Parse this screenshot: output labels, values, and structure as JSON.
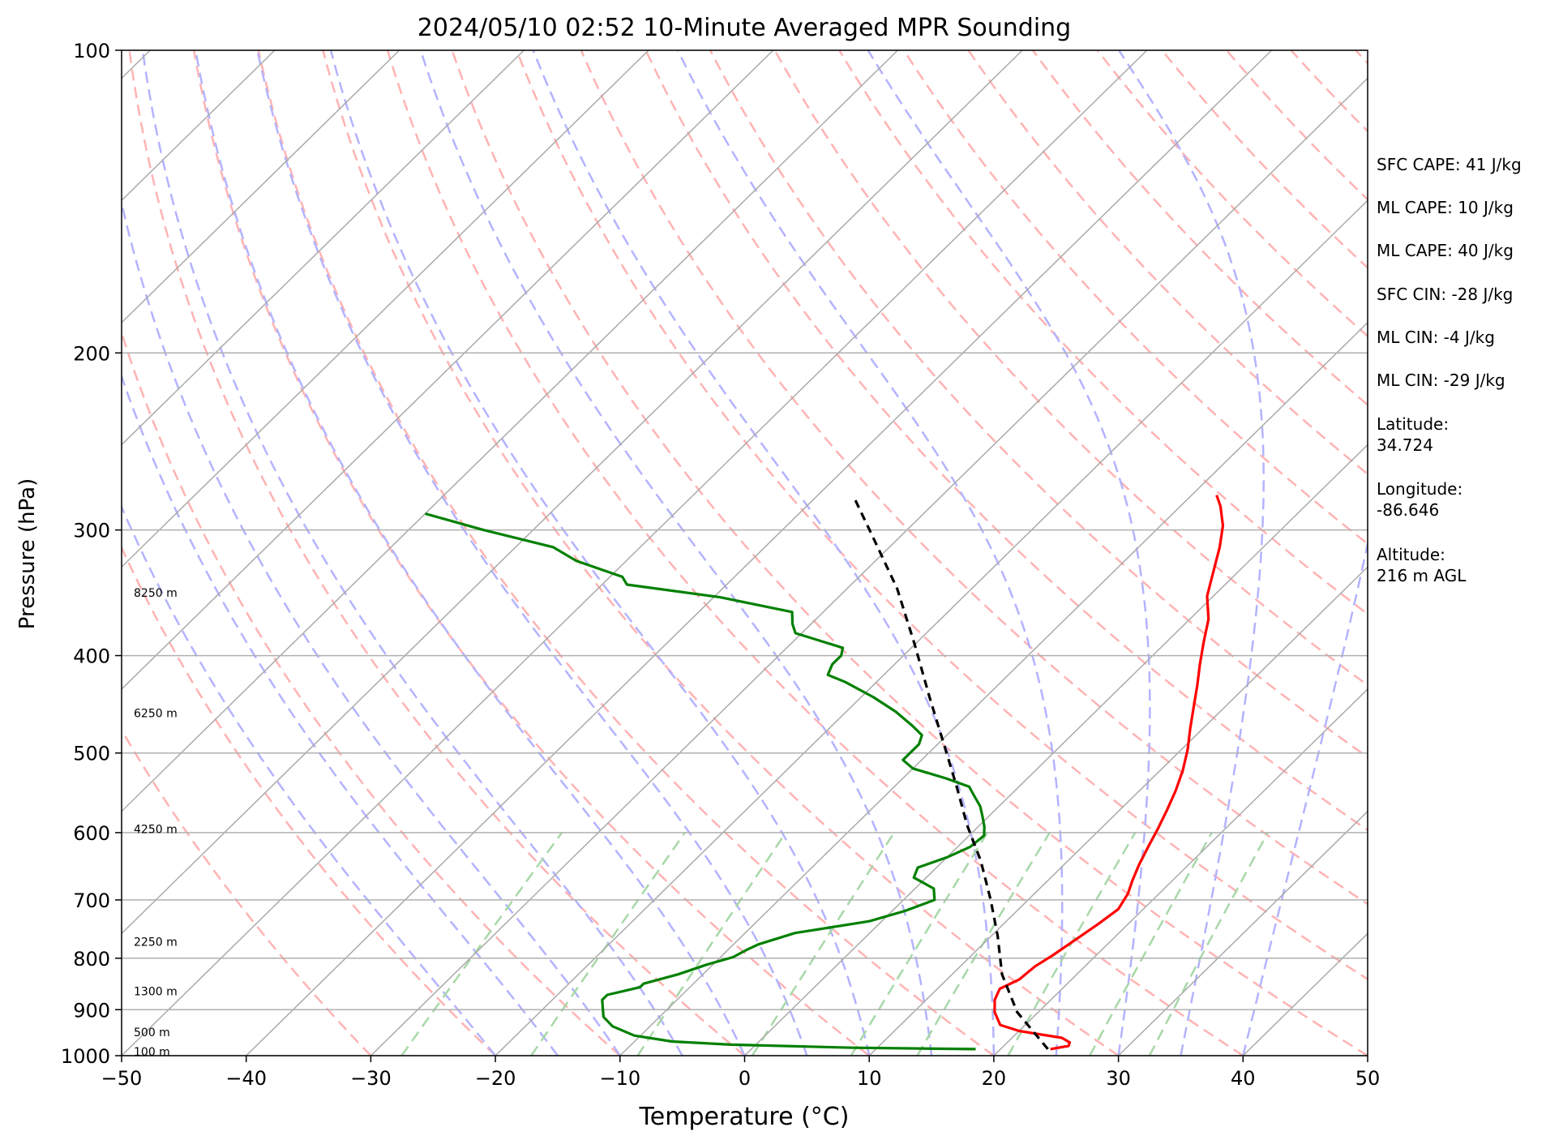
{
  "chart_data": {
    "type": "line",
    "subtype": "skew-T log-P sounding diagram",
    "title": "2024/05/10 02:52 10-Minute Averaged MPR Sounding",
    "xlabel": "Temperature (°C)",
    "ylabel": "Pressure (hPa)",
    "xlim": [
      -50,
      50
    ],
    "ylim_pressure_hPa": [
      1000,
      100
    ],
    "y_scale": "log (inverted)",
    "x_ticks": [
      -50,
      -40,
      -30,
      -20,
      -10,
      0,
      10,
      20,
      30,
      40,
      50
    ],
    "x_tick_labels": [
      "−50",
      "−40",
      "−30",
      "−20",
      "−10",
      "0",
      "10",
      "20",
      "30",
      "40",
      "50"
    ],
    "y_ticks": [
      100,
      200,
      300,
      400,
      500,
      600,
      700,
      800,
      900,
      1000
    ],
    "y_tick_labels": [
      "100",
      "200",
      "300",
      "400",
      "500",
      "600",
      "700",
      "800",
      "900",
      "1000"
    ],
    "grid": true,
    "height_labels": [
      {
        "text": "100 m",
        "p": 993
      },
      {
        "text": "500 m",
        "p": 949
      },
      {
        "text": "1300 m",
        "p": 864
      },
      {
        "text": "2250 m",
        "p": 772
      },
      {
        "text": "4250 m",
        "p": 596
      },
      {
        "text": "6250 m",
        "p": 457
      },
      {
        "text": "8250 m",
        "p": 347
      }
    ],
    "background_lines": {
      "isotherms_color": "#aaaaaa",
      "dry_adiabats_color": "#ffb3b3",
      "moist_adiabats_color": "#b3b3ff",
      "mixing_ratio_color": "#a8d8a8"
    },
    "series": [
      {
        "name": "temperature",
        "color": "#ff0000",
        "points": [
          [
            24.0,
            985
          ],
          [
            25.2,
            978
          ],
          [
            25.0,
            970
          ],
          [
            24.0,
            960
          ],
          [
            20.0,
            945
          ],
          [
            18.0,
            932
          ],
          [
            16.5,
            905
          ],
          [
            15.5,
            880
          ],
          [
            15.0,
            858
          ],
          [
            15.8,
            840
          ],
          [
            16.0,
            815
          ],
          [
            16.5,
            795
          ],
          [
            17.0,
            770
          ],
          [
            17.6,
            740
          ],
          [
            18.0,
            715
          ],
          [
            17.5,
            690
          ],
          [
            16.8,
            670
          ],
          [
            16.0,
            645
          ],
          [
            15.3,
            620
          ],
          [
            14.6,
            595
          ],
          [
            13.8,
            570
          ],
          [
            12.9,
            545
          ],
          [
            11.8,
            520
          ],
          [
            10.5,
            496
          ],
          [
            9.0,
            473
          ],
          [
            7.5,
            450
          ],
          [
            6.0,
            428
          ],
          [
            4.5,
            408
          ],
          [
            3.0,
            388
          ],
          [
            1.5,
            368
          ],
          [
            -0.5,
            349
          ],
          [
            -2.0,
            330
          ],
          [
            -3.5,
            312
          ],
          [
            -5.0,
            297
          ],
          [
            -6.8,
            284
          ],
          [
            -8.0,
            277
          ]
        ]
      },
      {
        "name": "dewpoint",
        "color": "#008000",
        "points": [
          [
            18.0,
            985
          ],
          [
            8.0,
            982
          ],
          [
            -2.0,
            975
          ],
          [
            -7.0,
            968
          ],
          [
            -10.5,
            955
          ],
          [
            -13.0,
            935
          ],
          [
            -14.5,
            915
          ],
          [
            -16.0,
            880
          ],
          [
            -16.0,
            870
          ],
          [
            -14.0,
            855
          ],
          [
            -14.0,
            848
          ],
          [
            -12.0,
            830
          ],
          [
            -10.5,
            812
          ],
          [
            -9.0,
            798
          ],
          [
            -8.5,
            785
          ],
          [
            -8.0,
            775
          ],
          [
            -6.0,
            755
          ],
          [
            -1.0,
            735
          ],
          [
            1.0,
            718
          ],
          [
            2.5,
            700
          ],
          [
            1.5,
            682
          ],
          [
            -1.0,
            665
          ],
          [
            -1.5,
            650
          ],
          [
            0.0,
            635
          ],
          [
            1.0,
            620
          ],
          [
            1.2,
            604
          ],
          [
            0.5,
            592
          ],
          [
            -0.5,
            578
          ],
          [
            -1.5,
            565
          ],
          [
            -3.0,
            550
          ],
          [
            -4.0,
            540
          ],
          [
            -6.5,
            530
          ],
          [
            -10.0,
            518
          ],
          [
            -11.5,
            508
          ],
          [
            -11.5,
            490
          ],
          [
            -12.0,
            480
          ],
          [
            -13.5,
            470
          ],
          [
            -16.0,
            455
          ],
          [
            -19.0,
            440
          ],
          [
            -22.5,
            425
          ],
          [
            -24.5,
            418
          ],
          [
            -25.0,
            408
          ],
          [
            -25.0,
            400
          ],
          [
            -25.5,
            393
          ],
          [
            -30.5,
            380
          ],
          [
            -31.5,
            372
          ],
          [
            -32.5,
            362
          ],
          [
            -39.5,
            350
          ],
          [
            -48.0,
            340
          ],
          [
            -49.0,
            334
          ],
          [
            -54.0,
            322
          ],
          [
            -57.0,
            312
          ],
          [
            -64.0,
            300
          ],
          [
            -70.0,
            289
          ]
        ]
      },
      {
        "name": "parcel",
        "color": "#000000",
        "style": "dashed",
        "points": [
          [
            23.8,
            985
          ],
          [
            18.3,
            905
          ],
          [
            14.0,
            830
          ],
          [
            10.5,
            760
          ],
          [
            7.0,
            700
          ],
          [
            3.0,
            640
          ],
          [
            -1.0,
            590
          ],
          [
            -5.0,
            540
          ],
          [
            -9.5,
            490
          ],
          [
            -14.5,
            440
          ],
          [
            -20.0,
            390
          ],
          [
            -26.0,
            343
          ],
          [
            -33.0,
            300
          ],
          [
            -37.0,
            278
          ]
        ]
      }
    ]
  },
  "indices": {
    "sfc_cape": "SFC CAPE: 41 J/kg",
    "ml_cape_1": "ML CAPE: 10 J/kg",
    "ml_cape_2": "ML CAPE: 40 J/kg",
    "sfc_cin": "SFC CIN: -28 J/kg",
    "ml_cin_1": "ML CIN: -4 J/kg",
    "ml_cin_2": "ML CIN: -29 J/kg",
    "latitude": "Latitude:\n34.724",
    "longitude": "Longitude:\n-86.646",
    "altitude": "Altitude:\n216 m AGL"
  }
}
